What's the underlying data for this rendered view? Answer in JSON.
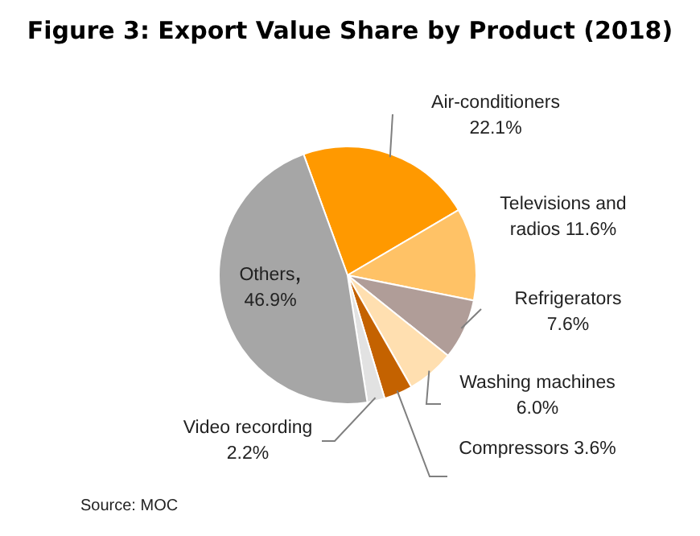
{
  "chart_data": {
    "type": "pie",
    "title": "Figure 3: Export Value Share by Product (2018)",
    "categories": [
      "Air-conditioners",
      "Televisions and radios",
      "Refrigerators",
      "Washing machines",
      "Compressors",
      "Video recording",
      "Others"
    ],
    "values": [
      22.1,
      11.6,
      7.6,
      6.0,
      3.6,
      2.2,
      46.9
    ],
    "value_labels": [
      "22.1%",
      "11.6%",
      "7.6%",
      "6.0%",
      "3.6%",
      "2.2%",
      "46.9%"
    ],
    "colors": [
      "#ff9900",
      "#ffc266",
      "#b09d98",
      "#ffdfb0",
      "#c46200",
      "#e2e2e2",
      "#a6a6a6"
    ],
    "annotations": [
      "Source: MOC"
    ]
  }
}
